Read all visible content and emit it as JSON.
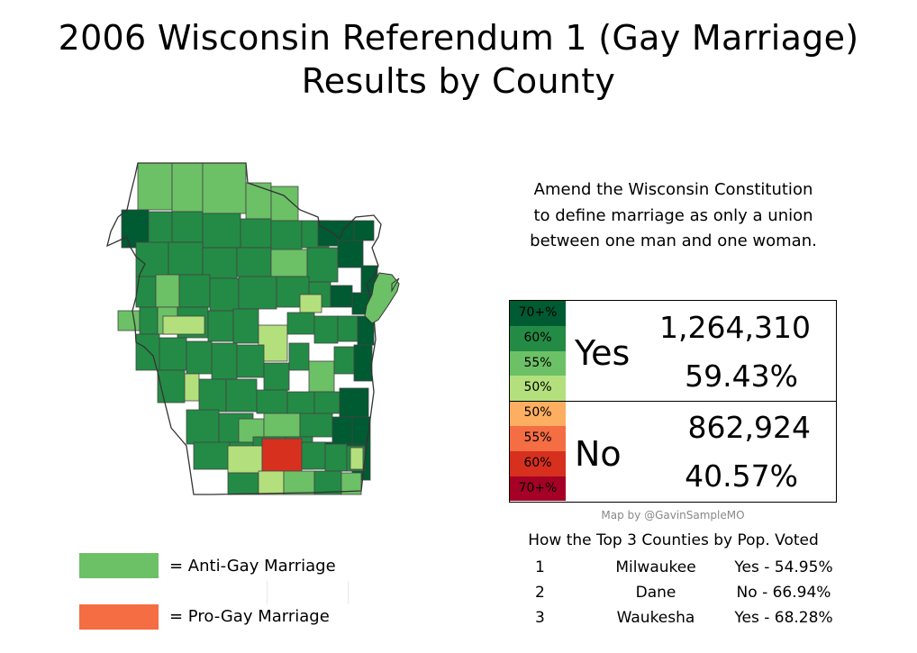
{
  "title": {
    "line1": "2006 Wisconsin Referendum 1 (Gay Marriage)",
    "line2": "Results by County"
  },
  "question": {
    "line1": "Amend the Wisconsin Constitution",
    "line2": "to define marriage as only a union",
    "line3": "between one man and one woman."
  },
  "colors": {
    "yes_70": "#005a32",
    "yes_60": "#238b45",
    "yes_55": "#6cc066",
    "yes_50": "#b3e07c",
    "no_50": "#fdae61",
    "no_55": "#f46d43",
    "no_60": "#d7301f",
    "no_70": "#a50026",
    "legend_anti": "#6cc066",
    "legend_pro": "#f46d43",
    "border": "#444444"
  },
  "scale": {
    "yes": [
      "70+%",
      "60%",
      "55%",
      "50%"
    ],
    "no": [
      "50%",
      "55%",
      "60%",
      "70+%"
    ]
  },
  "results": {
    "yes": {
      "label": "Yes",
      "votes": "1,264,310",
      "percent": "59.43%"
    },
    "no": {
      "label": "No",
      "votes": "862,924",
      "percent": "40.57%"
    }
  },
  "credit": "Map by @GavinSampleMO",
  "top_counties": {
    "title": "How the Top 3 Counties by Pop. Voted",
    "rows": [
      {
        "rank": "1",
        "county": "Milwaukee",
        "result": "Yes - 54.95%"
      },
      {
        "rank": "2",
        "county": "Dane",
        "result": "No - 66.94%"
      },
      {
        "rank": "3",
        "county": "Waukesha",
        "result": "Yes - 68.28%"
      }
    ]
  },
  "legend": {
    "anti": "=  Anti-Gay Marriage",
    "pro": "=  Pro-Gay Marriage"
  },
  "map": {
    "region": "Wisconsin",
    "unit": "county",
    "pro_county_count": 1,
    "category_legend": [
      "70+%",
      "60%",
      "55%",
      "50%"
    ]
  }
}
